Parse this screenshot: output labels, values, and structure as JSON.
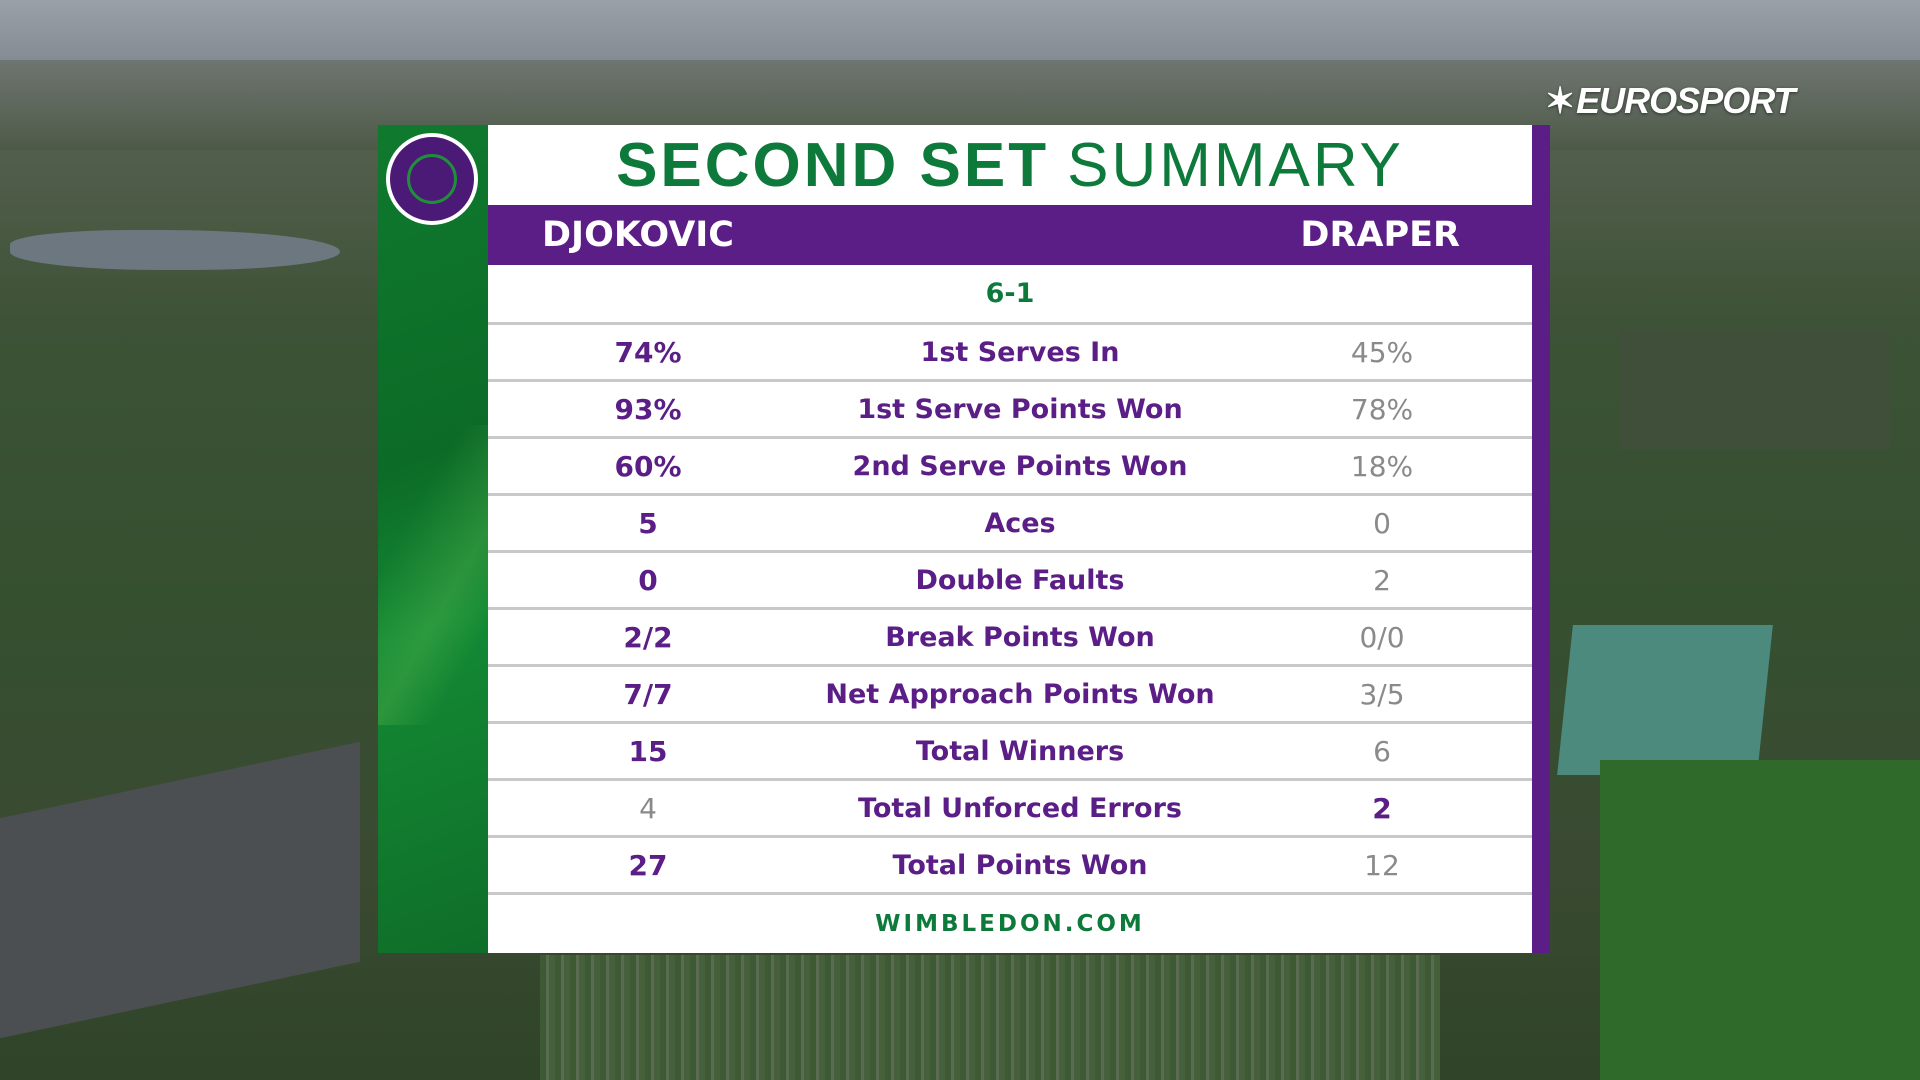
{
  "broadcaster": {
    "logo_text": "EUROSPORT"
  },
  "graphic": {
    "title_bold": "SECOND SET",
    "title_light": "SUMMARY",
    "player_left": "DJOKOVIC",
    "player_right": "DRAPER",
    "score": "6-1",
    "stats": [
      {
        "label": "1st Serves In",
        "left": "74%",
        "right": "45%",
        "winner": "left"
      },
      {
        "label": "1st Serve Points Won",
        "left": "93%",
        "right": "78%",
        "winner": "left"
      },
      {
        "label": "2nd Serve Points Won",
        "left": "60%",
        "right": "18%",
        "winner": "left"
      },
      {
        "label": "Aces",
        "left": "5",
        "right": "0",
        "winner": "left"
      },
      {
        "label": "Double Faults",
        "left": "0",
        "right": "2",
        "winner": "left"
      },
      {
        "label": "Break Points Won",
        "left": "2/2",
        "right": "0/0",
        "winner": "left"
      },
      {
        "label": "Net Approach Points Won",
        "left": "7/7",
        "right": "3/5",
        "winner": "left"
      },
      {
        "label": "Total Winners",
        "left": "15",
        "right": "6",
        "winner": "left"
      },
      {
        "label": "Total Unforced Errors",
        "left": "4",
        "right": "2",
        "winner": "right"
      },
      {
        "label": "Total Points Won",
        "left": "27",
        "right": "12",
        "winner": "left"
      }
    ],
    "footer": "WIMBLEDON.COM",
    "logo_icon": "wimbledon-crossed-rackets-icon"
  },
  "colors": {
    "green": "#0d7a3c",
    "purple": "#5b1d86",
    "muted": "#8a8a8a"
  }
}
